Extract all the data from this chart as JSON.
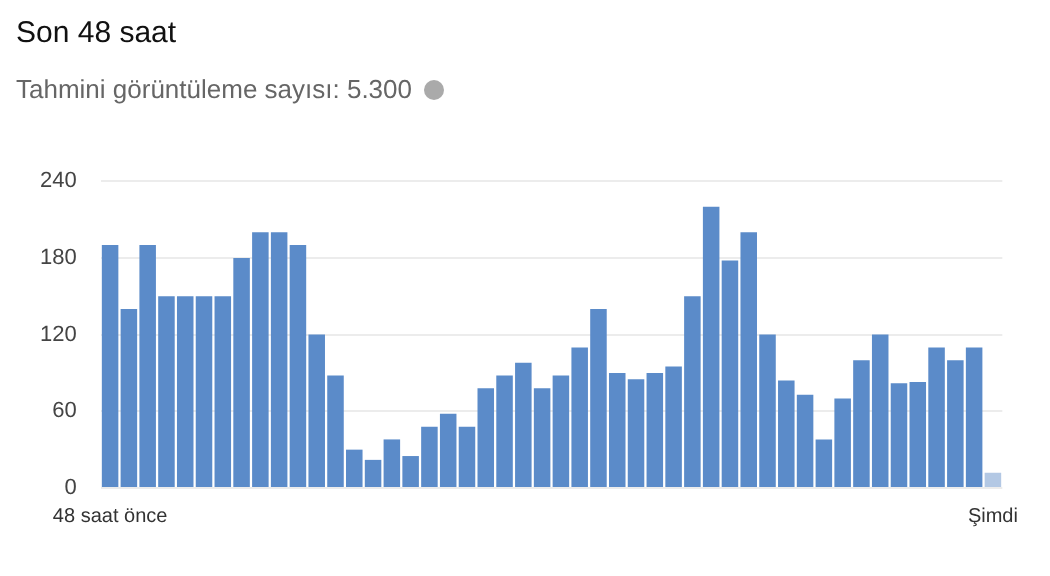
{
  "chart_data": {
    "type": "bar",
    "title": "Son 48 saat",
    "subtitle": "Tahmini görüntüleme sayısı: 5.300",
    "categories": [
      "48 saat önce",
      null,
      null,
      null,
      null,
      null,
      null,
      null,
      null,
      null,
      null,
      null,
      null,
      null,
      null,
      null,
      null,
      null,
      null,
      null,
      null,
      null,
      null,
      null,
      null,
      null,
      null,
      null,
      null,
      null,
      null,
      null,
      null,
      null,
      null,
      null,
      null,
      null,
      null,
      null,
      null,
      null,
      null,
      null,
      null,
      null,
      null,
      "Şimdi"
    ],
    "values": [
      190,
      140,
      190,
      150,
      150,
      150,
      150,
      180,
      200,
      200,
      190,
      120,
      88,
      30,
      22,
      38,
      25,
      48,
      58,
      48,
      78,
      88,
      98,
      78,
      88,
      110,
      140,
      90,
      85,
      90,
      95,
      150,
      220,
      178,
      200,
      120,
      84,
      73,
      38,
      70,
      100,
      120,
      82,
      83,
      110,
      100,
      110,
      12
    ],
    "colors": [
      "#5b8bc9",
      "#5b8bc9",
      "#5b8bc9",
      "#5b8bc9",
      "#5b8bc9",
      "#5b8bc9",
      "#5b8bc9",
      "#5b8bc9",
      "#5b8bc9",
      "#5b8bc9",
      "#5b8bc9",
      "#5b8bc9",
      "#5b8bc9",
      "#5b8bc9",
      "#5b8bc9",
      "#5b8bc9",
      "#5b8bc9",
      "#5b8bc9",
      "#5b8bc9",
      "#5b8bc9",
      "#5b8bc9",
      "#5b8bc9",
      "#5b8bc9",
      "#5b8bc9",
      "#5b8bc9",
      "#5b8bc9",
      "#5b8bc9",
      "#5b8bc9",
      "#5b8bc9",
      "#5b8bc9",
      "#5b8bc9",
      "#5b8bc9",
      "#5b8bc9",
      "#5b8bc9",
      "#5b8bc9",
      "#5b8bc9",
      "#5b8bc9",
      "#5b8bc9",
      "#5b8bc9",
      "#5b8bc9",
      "#5b8bc9",
      "#5b8bc9",
      "#5b8bc9",
      "#5b8bc9",
      "#5b8bc9",
      "#5b8bc9",
      "#5b8bc9",
      "#b3c8e4"
    ],
    "ylim": [
      0,
      240
    ],
    "yticks": [
      0,
      60,
      120,
      180,
      240
    ],
    "grid": "y"
  }
}
